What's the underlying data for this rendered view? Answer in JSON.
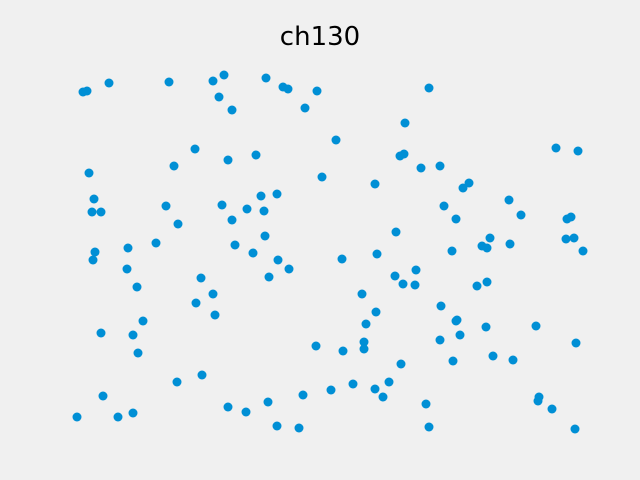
{
  "chart_data": {
    "type": "scatter",
    "title": "ch130",
    "xlabel": "",
    "ylabel": "",
    "axes_visible": false,
    "grid": false,
    "marker_color": "#008fd5",
    "points": [
      [
        83,
        92
      ],
      [
        87,
        91
      ],
      [
        109,
        83
      ],
      [
        169,
        82
      ],
      [
        213,
        81
      ],
      [
        224,
        75
      ],
      [
        219,
        97
      ],
      [
        232,
        110
      ],
      [
        266,
        78
      ],
      [
        283,
        87
      ],
      [
        288,
        89
      ],
      [
        305,
        108
      ],
      [
        317,
        91
      ],
      [
        429,
        88
      ],
      [
        405,
        123
      ],
      [
        336,
        140
      ],
      [
        256,
        155
      ],
      [
        195,
        149
      ],
      [
        174,
        166
      ],
      [
        228,
        160
      ],
      [
        89,
        173
      ],
      [
        94,
        199
      ],
      [
        92,
        212
      ],
      [
        101,
        212
      ],
      [
        322,
        177
      ],
      [
        375,
        184
      ],
      [
        400,
        156
      ],
      [
        404,
        154
      ],
      [
        421,
        168
      ],
      [
        440,
        166
      ],
      [
        463,
        188
      ],
      [
        469,
        183
      ],
      [
        556,
        148
      ],
      [
        578,
        151
      ],
      [
        166,
        206
      ],
      [
        222,
        205
      ],
      [
        232,
        220
      ],
      [
        247,
        209
      ],
      [
        261,
        196
      ],
      [
        277,
        194
      ],
      [
        264,
        211
      ],
      [
        444,
        206
      ],
      [
        456,
        219
      ],
      [
        509,
        200
      ],
      [
        521,
        215
      ],
      [
        567,
        219
      ],
      [
        571,
        217
      ],
      [
        178,
        224
      ],
      [
        95,
        252
      ],
      [
        93,
        260
      ],
      [
        128,
        248
      ],
      [
        156,
        243
      ],
      [
        235,
        245
      ],
      [
        253,
        253
      ],
      [
        265,
        236
      ],
      [
        278,
        260
      ],
      [
        289,
        269
      ],
      [
        269,
        277
      ],
      [
        342,
        259
      ],
      [
        377,
        254
      ],
      [
        396,
        232
      ],
      [
        452,
        251
      ],
      [
        482,
        246
      ],
      [
        487,
        248
      ],
      [
        490,
        238
      ],
      [
        510,
        244
      ],
      [
        566,
        239
      ],
      [
        574,
        238
      ],
      [
        583,
        251
      ],
      [
        127,
        269
      ],
      [
        137,
        287
      ],
      [
        201,
        278
      ],
      [
        213,
        294
      ],
      [
        196,
        303
      ],
      [
        215,
        315
      ],
      [
        395,
        276
      ],
      [
        403,
        284
      ],
      [
        416,
        270
      ],
      [
        415,
        285
      ],
      [
        477,
        286
      ],
      [
        487,
        282
      ],
      [
        362,
        294
      ],
      [
        376,
        312
      ],
      [
        366,
        324
      ],
      [
        441,
        306
      ],
      [
        457,
        320
      ],
      [
        456,
        321
      ],
      [
        486,
        327
      ],
      [
        536,
        326
      ],
      [
        143,
        321
      ],
      [
        101,
        333
      ],
      [
        133,
        335
      ],
      [
        138,
        353
      ],
      [
        316,
        346
      ],
      [
        343,
        351
      ],
      [
        364,
        342
      ],
      [
        364,
        349
      ],
      [
        440,
        340
      ],
      [
        460,
        335
      ],
      [
        576,
        343
      ],
      [
        401,
        364
      ],
      [
        453,
        361
      ],
      [
        493,
        356
      ],
      [
        513,
        360
      ],
      [
        177,
        382
      ],
      [
        202,
        375
      ],
      [
        331,
        390
      ],
      [
        353,
        384
      ],
      [
        375,
        389
      ],
      [
        389,
        382
      ],
      [
        383,
        397
      ],
      [
        303,
        395
      ],
      [
        103,
        396
      ],
      [
        77,
        417
      ],
      [
        118,
        417
      ],
      [
        133,
        413
      ],
      [
        228,
        407
      ],
      [
        246,
        412
      ],
      [
        268,
        402
      ],
      [
        277,
        426
      ],
      [
        299,
        428
      ],
      [
        426,
        404
      ],
      [
        429,
        427
      ],
      [
        538,
        401
      ],
      [
        539,
        397
      ],
      [
        552,
        409
      ],
      [
        575,
        429
      ]
    ]
  }
}
